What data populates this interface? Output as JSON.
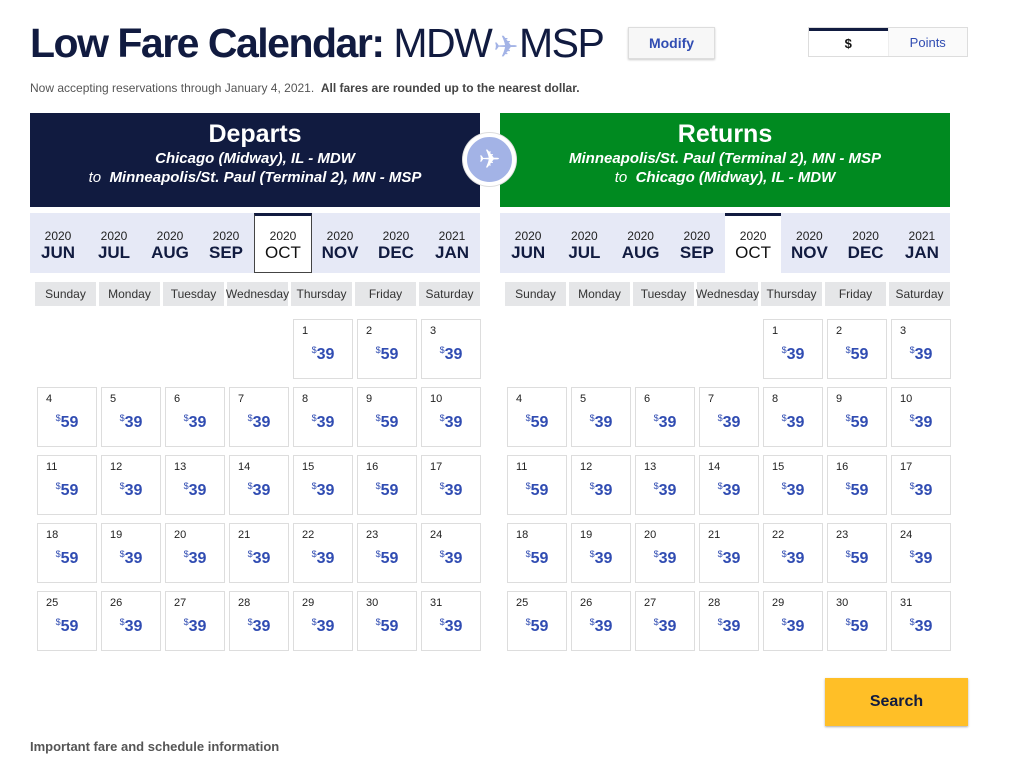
{
  "header": {
    "title_bold": "Low Fare Calendar:",
    "origin": "MDW",
    "destination": "MSP",
    "plane_icon": "✈",
    "modify_label": "Modify"
  },
  "currency_toggle": {
    "dollars_label": "$",
    "points_label": "Points",
    "selected": "$"
  },
  "notice": {
    "text": "Now accepting reservations through January 4, 2021.",
    "bold_text": "All fares are rounded up to the nearest dollar."
  },
  "colors": {
    "depart": "#111b40",
    "return": "#008a20",
    "accent": "#304cb2",
    "search": "#ffbf27"
  },
  "weekdays": [
    "Sunday",
    "Monday",
    "Tuesday",
    "Wednesday",
    "Thursday",
    "Friday",
    "Saturday"
  ],
  "months": [
    {
      "year": "2020",
      "month": "JUN"
    },
    {
      "year": "2020",
      "month": "JUL"
    },
    {
      "year": "2020",
      "month": "AUG"
    },
    {
      "year": "2020",
      "month": "SEP"
    },
    {
      "year": "2020",
      "month": "OCT"
    },
    {
      "year": "2020",
      "month": "NOV"
    },
    {
      "year": "2020",
      "month": "DEC"
    },
    {
      "year": "2021",
      "month": "JAN"
    }
  ],
  "selected_month": "OCT",
  "departs": {
    "title": "Departs",
    "line1": "Chicago (Midway), IL - MDW",
    "to": "to",
    "line2": "Minneapolis/St. Paul (Terminal 2), MN - MSP",
    "first_weekday": 4,
    "prices": [
      "39",
      "59",
      "39",
      "59",
      "39",
      "39",
      "39",
      "39",
      "59",
      "39",
      "59",
      "39",
      "39",
      "39",
      "39",
      "59",
      "39",
      "59",
      "39",
      "39",
      "39",
      "39",
      "59",
      "39",
      "59",
      "39",
      "39",
      "39",
      "39",
      "59",
      "39"
    ]
  },
  "returns": {
    "title": "Returns",
    "line1": "Minneapolis/St. Paul (Terminal 2), MN - MSP",
    "to": "to",
    "line2": "Chicago (Midway), IL - MDW",
    "first_weekday": 4,
    "prices": [
      "39",
      "59",
      "39",
      "59",
      "39",
      "39",
      "39",
      "39",
      "59",
      "39",
      "59",
      "39",
      "39",
      "39",
      "39",
      "59",
      "39",
      "59",
      "39",
      "39",
      "39",
      "39",
      "59",
      "39",
      "59",
      "39",
      "39",
      "39",
      "39",
      "59",
      "39"
    ]
  },
  "currency_symbol": "$",
  "search_label": "Search",
  "footer_link": "Important fare and schedule information"
}
